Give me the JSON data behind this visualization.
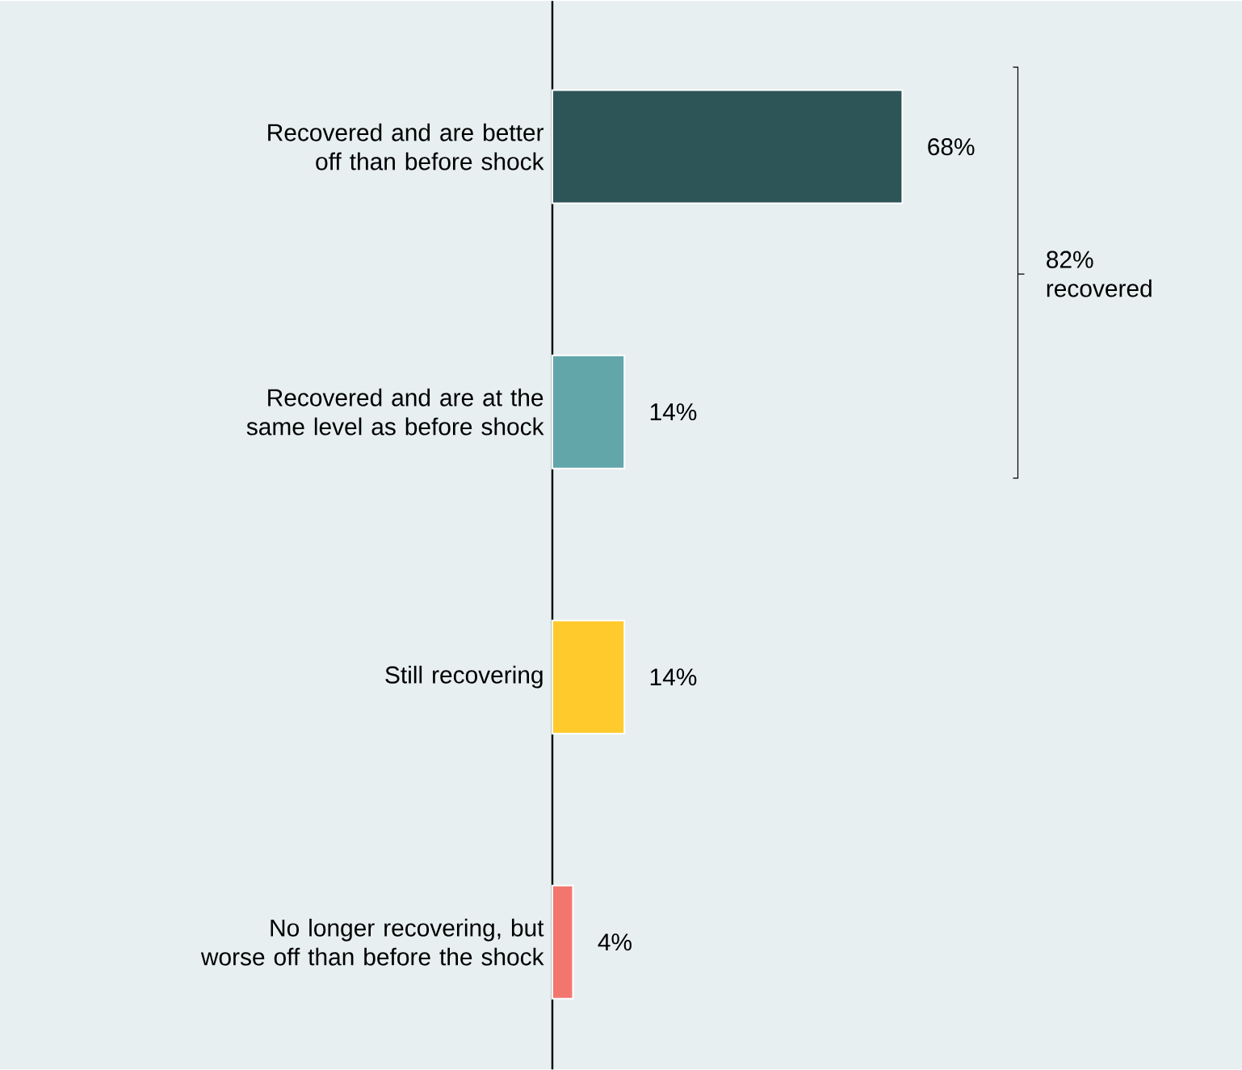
{
  "chart_data": {
    "type": "bar",
    "orientation": "horizontal",
    "categories": [
      "Recovered and are better off than before shock",
      "Recovered and are at the same level as before shock",
      "Still recovering",
      "No longer recovering, but worse off than before the shock"
    ],
    "values": [
      68,
      14,
      14,
      4
    ],
    "colors": [
      "#2d5457",
      "#62a6aa",
      "#ffca2c",
      "#f2766e"
    ],
    "value_labels": [
      "68%",
      "14%",
      "14%",
      "4%"
    ],
    "xlim": [
      0,
      134
    ],
    "tick_labels": "y",
    "annotations": [
      "82% recovered"
    ]
  }
}
